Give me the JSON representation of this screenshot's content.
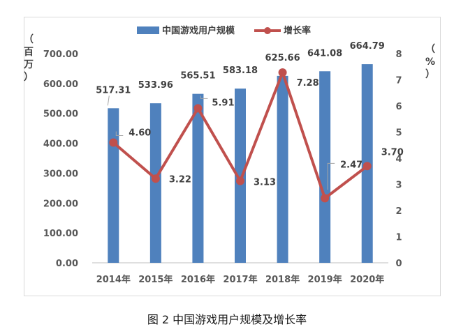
{
  "caption": "图 2 中国游戏用户规模及增长率",
  "chart_data": {
    "type": "bar",
    "categories": [
      "2014年",
      "2015年",
      "2016年",
      "2017年",
      "2018年",
      "2019年",
      "2020年"
    ],
    "series": [
      {
        "name": "中国游戏用户规模",
        "type": "bar",
        "axis": "left",
        "color": "#4f81bd",
        "values": [
          517.31,
          533.96,
          565.51,
          583.18,
          625.66,
          641.08,
          664.79
        ],
        "labels": [
          "517.31",
          "533.96",
          "565.51",
          "583.18",
          "625.66",
          "641.08",
          "664.79"
        ]
      },
      {
        "name": "增长率",
        "type": "line",
        "axis": "right",
        "color": "#c0504d",
        "values": [
          4.6,
          3.22,
          5.91,
          3.13,
          7.28,
          2.47,
          3.7
        ],
        "labels": [
          "4.60",
          "3.22",
          "5.91",
          "3.13",
          "7.28",
          "2.47",
          "3.70"
        ]
      }
    ],
    "y_left": {
      "label": "（百万）",
      "ylim": [
        0,
        700
      ],
      "ticks": [
        "0.00",
        "100.00",
        "200.00",
        "300.00",
        "400.00",
        "500.00",
        "600.00",
        "700.00"
      ]
    },
    "y_right": {
      "label": "（%）",
      "ylim": [
        0,
        8
      ],
      "ticks": [
        "0",
        "1",
        "2",
        "3",
        "4",
        "5",
        "6",
        "7",
        "8"
      ]
    },
    "legend_position": "top-center",
    "grid": false
  }
}
